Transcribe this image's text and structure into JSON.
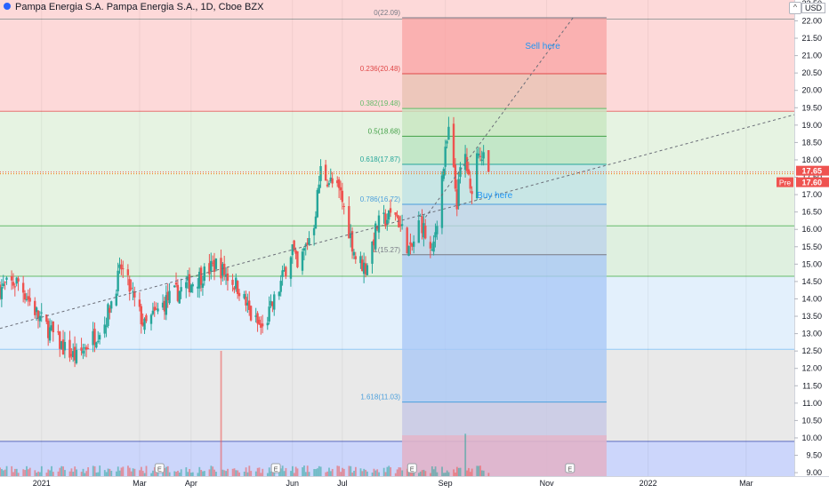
{
  "header": {
    "title": "Pampa Energia S.A. Pampa Energia S.A., 1D, Cboe BZX",
    "currency": "USD"
  },
  "chart_data": {
    "type": "candlestick",
    "title": "Pampa Energia S.A. Pampa Energia S.A., 1D, Cboe BZX",
    "y_range": [
      8.9,
      22.6
    ],
    "y_ticks": [
      9.0,
      9.5,
      10.0,
      10.5,
      11.0,
      11.5,
      12.0,
      12.5,
      13.0,
      13.5,
      14.0,
      14.5,
      15.0,
      15.5,
      16.0,
      16.5,
      17.0,
      17.5,
      18.0,
      18.5,
      19.0,
      19.5,
      20.0,
      20.5,
      21.0,
      21.5,
      22.0,
      22.5
    ],
    "y_tick_labels": [
      "9.00",
      "9.50",
      "10.00",
      "10.50",
      "11.00",
      "11.50",
      "12.00",
      "12.50",
      "13.00",
      "13.50",
      "14.00",
      "14.50",
      "15.00",
      "15.50",
      "16.00",
      "16.50",
      "17.00",
      "17.50",
      "18.00",
      "18.50",
      "19.00",
      "19.50",
      "20.00",
      "20.50",
      "21.00",
      "21.50",
      "22.00",
      "22.50"
    ],
    "x_range": [
      "2020-12-07",
      "2022-03-30"
    ],
    "x_ticks": [
      {
        "date": "2021-01-01",
        "label": "2021"
      },
      {
        "date": "2021-03-01",
        "label": "Mar"
      },
      {
        "date": "2021-04-01",
        "label": "Apr"
      },
      {
        "date": "2021-06-01",
        "label": "Jun"
      },
      {
        "date": "2021-07-01",
        "label": "Jul"
      },
      {
        "date": "2021-09-01",
        "label": "Sep"
      },
      {
        "date": "2021-11-01",
        "label": "Nov"
      },
      {
        "date": "2022-01-01",
        "label": "2022"
      },
      {
        "date": "2022-03-01",
        "label": "Mar"
      }
    ],
    "zones": [
      {
        "from": 19.4,
        "to": 22.6,
        "color": "#fdd9d9"
      },
      {
        "from": 16.1,
        "to": 19.4,
        "color": "#e6f3e2"
      },
      {
        "from": 14.65,
        "to": 16.1,
        "color": "#dff0e0"
      },
      {
        "from": 12.55,
        "to": 14.65,
        "color": "#e3f0fc"
      },
      {
        "from": 9.9,
        "to": 12.55,
        "color": "#e9e9e9"
      },
      {
        "from": 8.9,
        "to": 9.9,
        "color": "#ccd6fb"
      }
    ],
    "zone_lines": [
      {
        "y": 22.05,
        "color": "#9e9e9e"
      },
      {
        "y": 19.4,
        "color": "#e57373"
      },
      {
        "y": 16.1,
        "color": "#66bb6a"
      },
      {
        "y": 14.65,
        "color": "#66bb6a"
      },
      {
        "y": 12.55,
        "color": "#90caf9"
      },
      {
        "y": 9.9,
        "color": "#5c6bc0"
      }
    ],
    "fib_levels": [
      {
        "ratio": 0,
        "price": 22.09,
        "label": "0(22.09)",
        "color": "#787b86",
        "fill": "#f8a5a5"
      },
      {
        "ratio": 0.236,
        "price": 20.48,
        "label": "0.236(20.48)",
        "color": "#e04848",
        "fill": "#e8c2b2"
      },
      {
        "ratio": 0.382,
        "price": 19.48,
        "label": "0.382(19.48)",
        "color": "#66bb6a",
        "fill": "#c7e6bf"
      },
      {
        "ratio": 0.5,
        "price": 18.68,
        "label": "0.5(18.68)",
        "color": "#43a047",
        "fill": "#b9e3c0"
      },
      {
        "ratio": 0.618,
        "price": 17.87,
        "label": "0.618(17.87)",
        "color": "#26a69a",
        "fill": "#bfe2e6"
      },
      {
        "ratio": 0.786,
        "price": 16.72,
        "label": "0.786(16.72)",
        "color": "#4b9fdc",
        "fill": "#bcd2ea"
      },
      {
        "ratio": 1,
        "price": 15.27,
        "label": "1(15.27)",
        "color": "#787b86",
        "fill": "#a9c8f6"
      },
      {
        "ratio": 1.618,
        "price": 11.03,
        "label": "1.618(11.03)",
        "color": "#4b9fdc",
        "fill": "#c5c7e5"
      }
    ],
    "fib_box": {
      "start": "2021-08-06",
      "end": "2021-12-07",
      "bottom": 8.9
    },
    "trendlines": [
      {
        "from": [
          "2020-12-07",
          13.15
        ],
        "to": [
          "2022-03-30",
          19.3
        ]
      },
      {
        "from": [
          "2021-08-20",
          16.35
        ],
        "to": [
          "2021-11-17",
          22.1
        ]
      }
    ],
    "annotations": [
      {
        "text": "Sell here",
        "date": "2021-10-19",
        "price": 21.2,
        "color": "#2196f3"
      },
      {
        "text": "Buy here",
        "date": "2021-09-20",
        "price": 16.9,
        "color": "#2196f3"
      }
    ],
    "earnings_markers": [
      {
        "date": "2021-03-13",
        "label": "E"
      },
      {
        "date": "2021-05-22",
        "label": "E"
      },
      {
        "date": "2021-08-12",
        "label": "E"
      },
      {
        "date": "2021-11-15",
        "label": "E"
      }
    ],
    "current_price": {
      "value": 17.65,
      "label": "17.65"
    },
    "pre_market": {
      "value": 17.6,
      "label": "17.60",
      "tag": "Pre"
    },
    "candles": [],
    "volume": []
  }
}
